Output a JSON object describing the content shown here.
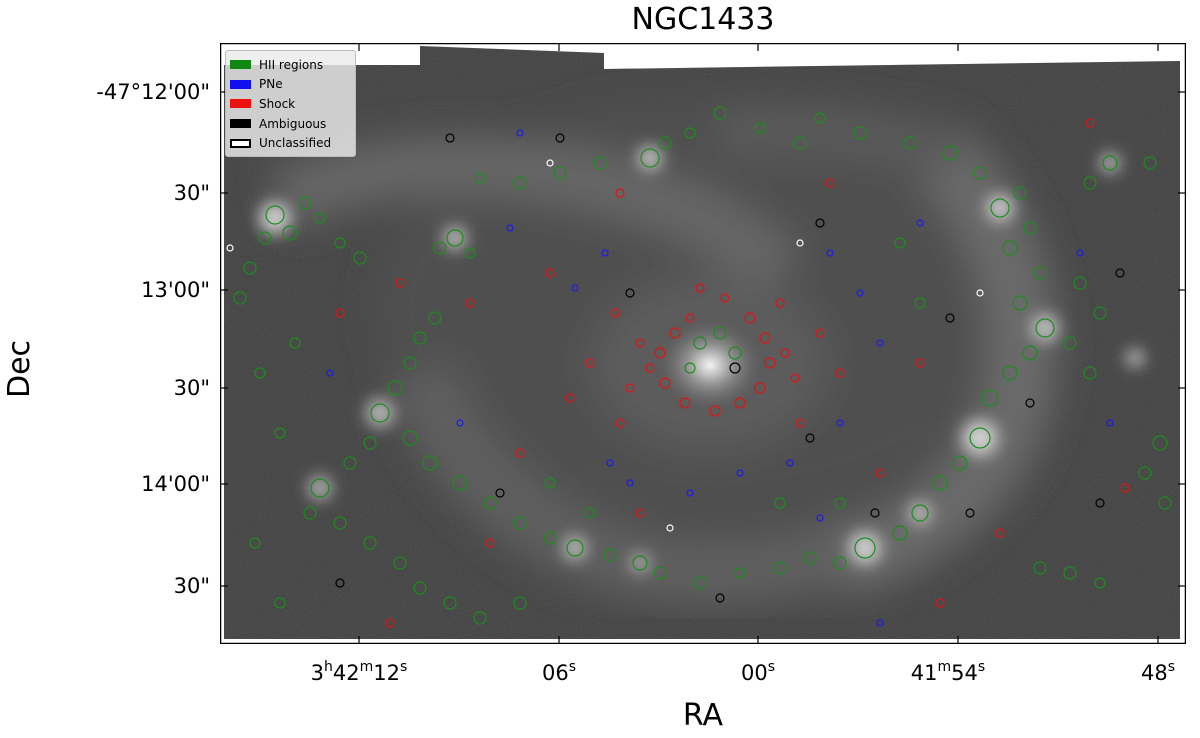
{
  "figure": {
    "title": "NGC1433",
    "xlabel": "RA",
    "ylabel": "Dec"
  },
  "axes": {
    "yticks": [
      "-47°12'00\"",
      "30\"",
      "13'00\"",
      "30\"",
      "14'00\"",
      "30\""
    ],
    "xticks": [
      {
        "main": "3",
        "h": "h",
        "mid": "42",
        "m": "m",
        "tail": "12",
        "s": "s"
      },
      {
        "main": "",
        "h": "",
        "mid": "",
        "m": "",
        "tail": "06",
        "s": "s"
      },
      {
        "main": "",
        "h": "",
        "mid": "",
        "m": "",
        "tail": "00",
        "s": "s"
      },
      {
        "main": "",
        "h": "",
        "mid": "41",
        "m": "m",
        "tail": "54",
        "s": "s"
      },
      {
        "main": "",
        "h": "",
        "mid": "",
        "m": "",
        "tail": "48",
        "s": "s"
      }
    ]
  },
  "legend": {
    "placement": "top-left",
    "items": [
      {
        "label": "HII regions",
        "color": "#118811",
        "style": "filled"
      },
      {
        "label": "PNe",
        "color": "#1010ee",
        "style": "filled"
      },
      {
        "label": "Shock",
        "color": "#ee1111",
        "style": "filled"
      },
      {
        "label": "Ambiguous",
        "color": "#000000",
        "style": "filled"
      },
      {
        "label": "Unclassified",
        "color": "#ffffff",
        "style": "outline"
      }
    ]
  }
}
